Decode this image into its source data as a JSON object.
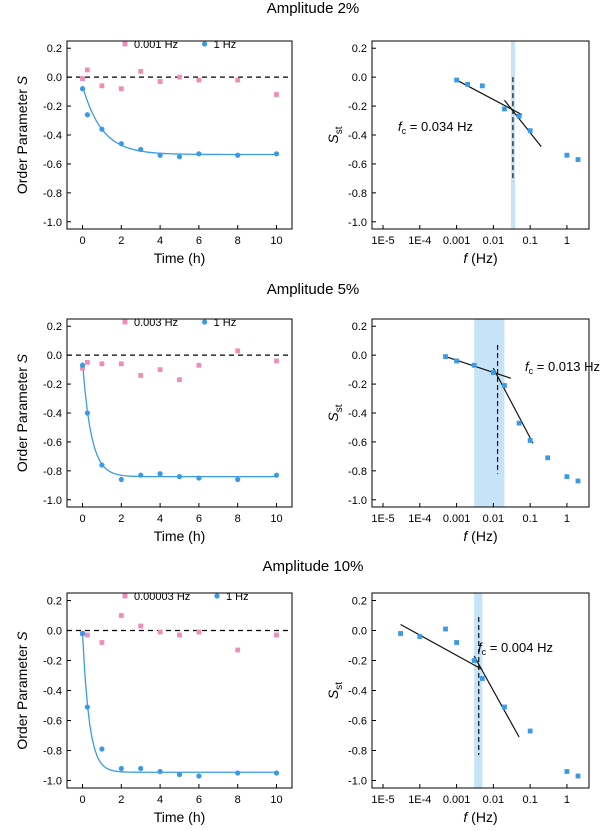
{
  "colors": {
    "pink": "#f08cb8",
    "blue": "#3a9ae6",
    "band": "#c7e3f8",
    "axis": "#000000"
  },
  "rows": [
    {
      "title": "Amplitude 2%"
    },
    {
      "title": "Amplitude 5%"
    },
    {
      "title": "Amplitude 10%"
    }
  ],
  "chart_data": [
    {
      "type": "scatter",
      "xlabel": "Time (h)",
      "ylabel": "Order Parameter S",
      "xlim": [
        -0.8,
        10.8
      ],
      "ylim": [
        -1.05,
        0.25
      ],
      "xticks": [
        "0",
        "2",
        "4",
        "6",
        "8",
        "10"
      ],
      "yticks": [
        "0.2",
        "0.0",
        "-0.2",
        "-0.4",
        "-0.6",
        "-0.8",
        "-1.0"
      ],
      "reference_line": 0,
      "legend_position": "top-center",
      "series": [
        {
          "name": "0.001 Hz",
          "color": "pink",
          "marker": "square",
          "x": [
            0,
            0.25,
            1,
            2,
            3,
            4,
            5,
            6,
            8,
            10
          ],
          "y": [
            -0.01,
            0.05,
            -0.06,
            -0.08,
            0.04,
            -0.03,
            0.0,
            -0.02,
            -0.02,
            -0.12
          ]
        },
        {
          "name": "1 Hz",
          "color": "blue",
          "marker": "circle",
          "x": [
            0,
            0.25,
            1,
            2,
            3,
            4,
            5,
            6,
            8,
            10
          ],
          "y": [
            -0.08,
            -0.26,
            -0.36,
            -0.46,
            -0.5,
            -0.54,
            -0.55,
            -0.53,
            -0.54,
            -0.53
          ]
        }
      ],
      "fit": {
        "series": "1 Hz",
        "start": -0.06,
        "plateau": -0.535,
        "tau": 1.0
      }
    },
    {
      "type": "scatter",
      "xlabel": "f (Hz)",
      "ylabel": "S_st",
      "xscale": "log",
      "xlim": [
        -5.3,
        0.6
      ],
      "ylim": [
        -1.05,
        0.25
      ],
      "xticks": [
        "1E-5",
        "1E-4",
        "0.001",
        "0.01",
        "0.1",
        "1"
      ],
      "yticks": [
        "0.2",
        "0.0",
        "-0.2",
        "-0.4",
        "-0.6",
        "-0.8",
        "-1.0"
      ],
      "series": [
        {
          "name": "",
          "color": "blue",
          "marker": "square",
          "x": [
            0.001,
            0.002,
            0.005,
            0.02,
            0.05,
            0.1,
            1,
            2
          ],
          "y": [
            -0.02,
            -0.05,
            -0.06,
            -0.22,
            -0.27,
            -0.37,
            -0.54,
            -0.57
          ]
        }
      ],
      "lines": [
        {
          "x": [
            0.001,
            0.06
          ],
          "y": [
            -0.02,
            -0.26
          ]
        },
        {
          "x": [
            0.02,
            0.2
          ],
          "y": [
            -0.16,
            -0.48
          ]
        }
      ],
      "critical": {
        "label_prefix": "f",
        "label_sub": "c",
        "label_value": " = 0.034 Hz",
        "f": 0.034,
        "band": [
          0.03,
          0.039
        ],
        "dash_y": [
          0.0,
          -0.72
        ]
      }
    },
    {
      "type": "scatter",
      "xlabel": "Time (h)",
      "ylabel": "Order Parameter S",
      "xlim": [
        -0.8,
        10.8
      ],
      "ylim": [
        -1.05,
        0.25
      ],
      "xticks": [
        "0",
        "2",
        "4",
        "6",
        "8",
        "10"
      ],
      "yticks": [
        "0.2",
        "0.0",
        "-0.2",
        "-0.4",
        "-0.6",
        "-0.8",
        "-1.0"
      ],
      "reference_line": 0,
      "legend_position": "top-center",
      "series": [
        {
          "name": "0.003 Hz",
          "color": "pink",
          "marker": "square",
          "x": [
            0,
            0.25,
            1,
            2,
            3,
            4,
            5,
            6,
            8,
            10
          ],
          "y": [
            -0.09,
            -0.05,
            -0.06,
            -0.06,
            -0.14,
            -0.1,
            -0.17,
            -0.07,
            0.03,
            -0.04
          ]
        },
        {
          "name": "1 Hz",
          "color": "blue",
          "marker": "circle",
          "x": [
            0,
            0.25,
            1,
            2,
            3,
            4,
            5,
            6,
            8,
            10
          ],
          "y": [
            -0.07,
            -0.4,
            -0.76,
            -0.86,
            -0.83,
            -0.82,
            -0.84,
            -0.85,
            -0.86,
            -0.83
          ]
        }
      ],
      "fit": {
        "series": "1 Hz",
        "start": -0.05,
        "plateau": -0.84,
        "tau": 0.45
      }
    },
    {
      "type": "scatter",
      "xlabel": "f (Hz)",
      "ylabel": "S_st",
      "xscale": "log",
      "xlim": [
        -5.3,
        0.6
      ],
      "ylim": [
        -1.05,
        0.25
      ],
      "xticks": [
        "1E-5",
        "1E-4",
        "0.001",
        "0.01",
        "0.1",
        "1"
      ],
      "yticks": [
        "0.2",
        "0.0",
        "-0.2",
        "-0.4",
        "-0.6",
        "-0.8",
        "-1.0"
      ],
      "series": [
        {
          "name": "",
          "color": "blue",
          "marker": "square",
          "x": [
            0.0005,
            0.001,
            0.003,
            0.01,
            0.02,
            0.05,
            0.1,
            0.3,
            1,
            2
          ],
          "y": [
            -0.01,
            -0.04,
            -0.07,
            -0.12,
            -0.21,
            -0.47,
            -0.59,
            -0.71,
            -0.84,
            -0.87
          ]
        }
      ],
      "lines": [
        {
          "x": [
            0.0005,
            0.03
          ],
          "y": [
            -0.01,
            -0.16
          ]
        },
        {
          "x": [
            0.01,
            0.12
          ],
          "y": [
            -0.09,
            -0.61
          ]
        }
      ],
      "critical": {
        "label_prefix": "f",
        "label_sub": "c",
        "label_value": " = 0.013 Hz",
        "f": 0.013,
        "band": [
          0.003,
          0.02
        ],
        "dash_y": [
          0.07,
          -0.82
        ]
      }
    },
    {
      "type": "scatter",
      "xlabel": "Time (h)",
      "ylabel": "Order Parameter S",
      "xlim": [
        -0.8,
        10.8
      ],
      "ylim": [
        -1.05,
        0.25
      ],
      "xticks": [
        "0",
        "2",
        "4",
        "6",
        "8",
        "10"
      ],
      "yticks": [
        "0.2",
        "0.0",
        "-0.2",
        "-0.4",
        "-0.6",
        "-0.8",
        "-1.0"
      ],
      "reference_line": 0,
      "legend_position": "top-center",
      "series": [
        {
          "name": "0.00003 Hz",
          "color": "pink",
          "marker": "square",
          "x": [
            0,
            0.25,
            1,
            2,
            3,
            4,
            5,
            6,
            8,
            10
          ],
          "y": [
            -0.02,
            -0.03,
            -0.08,
            0.1,
            0.03,
            -0.01,
            -0.03,
            -0.01,
            -0.13,
            -0.03
          ]
        },
        {
          "name": "1 Hz",
          "color": "blue",
          "marker": "circle",
          "x": [
            0,
            0.25,
            1,
            2,
            3,
            4,
            5,
            6,
            8,
            10
          ],
          "y": [
            -0.02,
            -0.51,
            -0.79,
            -0.92,
            -0.92,
            -0.94,
            -0.96,
            -0.97,
            -0.95,
            -0.95
          ]
        }
      ],
      "fit": {
        "series": "1 Hz",
        "start": -0.02,
        "plateau": -0.945,
        "tau": 0.35
      }
    },
    {
      "type": "scatter",
      "xlabel": "f (Hz)",
      "ylabel": "S_st",
      "xscale": "log",
      "xlim": [
        -5.3,
        0.6
      ],
      "ylim": [
        -1.05,
        0.25
      ],
      "xticks": [
        "1E-5",
        "1E-4",
        "0.001",
        "0.01",
        "0.1",
        "1"
      ],
      "yticks": [
        "0.2",
        "0.0",
        "-0.2",
        "-0.4",
        "-0.6",
        "-0.8",
        "-1.0"
      ],
      "series": [
        {
          "name": "",
          "color": "blue",
          "marker": "square",
          "x": [
            3e-05,
            0.0001,
            0.0005,
            0.001,
            0.003,
            0.005,
            0.02,
            0.1,
            1,
            2
          ],
          "y": [
            -0.02,
            -0.04,
            0.01,
            -0.08,
            -0.2,
            -0.32,
            -0.51,
            -0.67,
            -0.94,
            -0.97
          ]
        }
      ],
      "lines": [
        {
          "x": [
            3e-05,
            0.005
          ],
          "y": [
            0.04,
            -0.26
          ]
        },
        {
          "x": [
            0.003,
            0.05
          ],
          "y": [
            -0.17,
            -0.71
          ]
        }
      ],
      "critical": {
        "label_prefix": "f",
        "label_sub": "c",
        "label_value": " = 0.004 Hz",
        "f": 0.004,
        "band": [
          0.003,
          0.005
        ],
        "dash_y": [
          0.09,
          -0.83
        ]
      }
    }
  ]
}
